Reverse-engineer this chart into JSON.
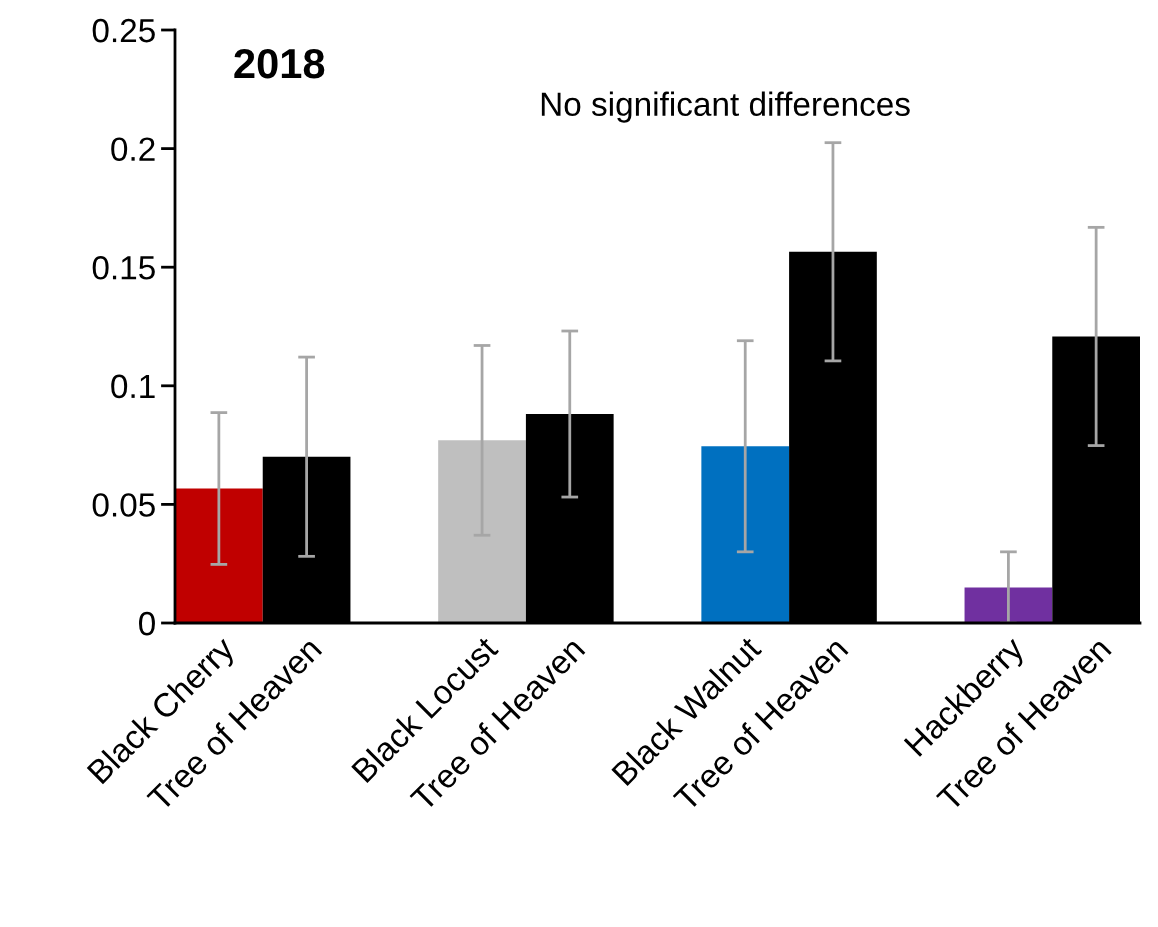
{
  "chart_data": {
    "type": "bar",
    "title": "2018",
    "annotations": [
      "No significant differences"
    ],
    "categories": [
      "Black Cherry",
      "Tree of Heaven",
      null,
      "Black Locust",
      "Tree of Heaven",
      null,
      "Black Walnut",
      "Tree of Heaven",
      null,
      "Hackberry",
      "Tree of Heaven"
    ],
    "values": [
      0.0567,
      0.0701,
      null,
      0.077,
      0.0881,
      null,
      0.0745,
      0.1565,
      null,
      0.015,
      0.1208
    ],
    "errors": [
      0.032,
      0.042,
      null,
      0.04,
      0.035,
      null,
      0.0445,
      0.046,
      null,
      0.015,
      0.046
    ],
    "colors": [
      "#c00000",
      "#000000",
      "#ffffff",
      "#bfbfbf",
      "#000000",
      "#ffffff",
      "#0070c0",
      "#000000",
      "#ffffff",
      "#7030a0",
      "#000000"
    ],
    "ylim": [
      0,
      0.25
    ],
    "yticks": [
      0,
      0.05,
      0.1,
      0.15,
      0.2,
      0.25
    ],
    "grid": false,
    "legend": false
  }
}
